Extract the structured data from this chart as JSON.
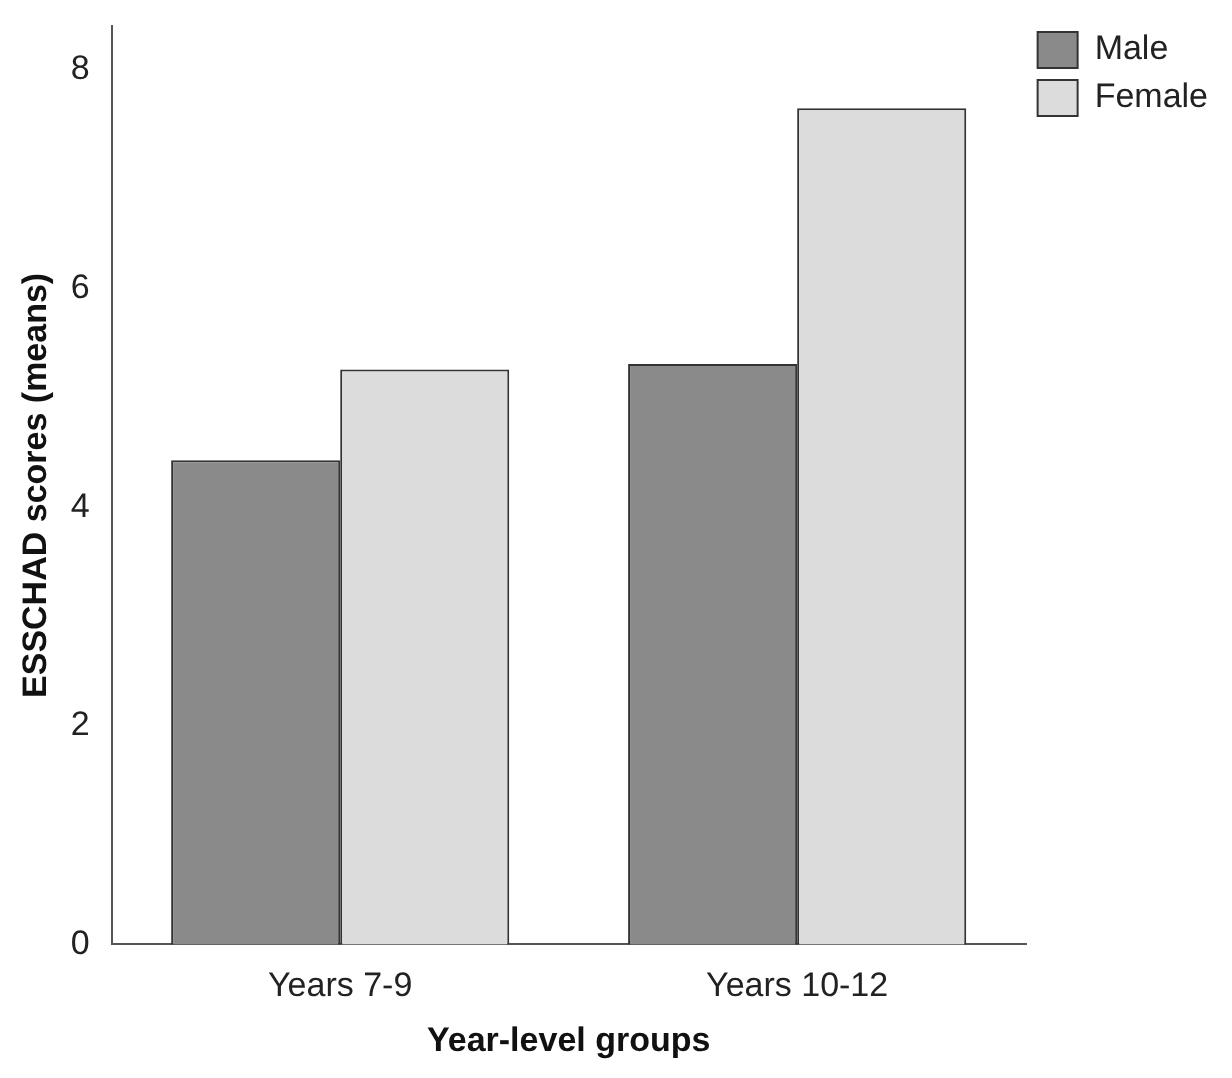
{
  "chart_data": {
    "type": "bar",
    "xlabel": "Year-level groups",
    "ylabel": "ESSCHAD scores (means)",
    "categories": [
      "Years 7-9",
      "Years 10-12"
    ],
    "series": [
      {
        "name": "Male",
        "color": "#8a8a8a",
        "values": [
          4.43,
          5.31
        ]
      },
      {
        "name": "Female",
        "color": "#dcdcdc",
        "values": [
          5.26,
          7.65
        ]
      }
    ],
    "ylim": [
      0,
      8.4
    ],
    "yticks": [
      0,
      2,
      4,
      6,
      8
    ],
    "grid": false,
    "legend": "top right"
  }
}
